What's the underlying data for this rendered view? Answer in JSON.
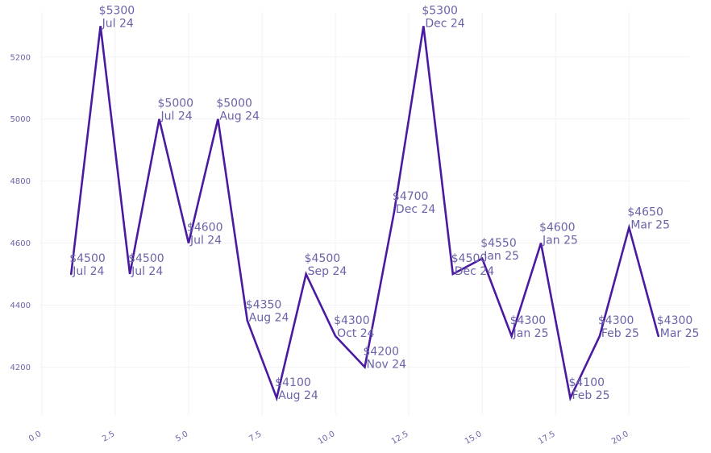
{
  "chart_data": {
    "type": "line",
    "title": "",
    "xlabel": "",
    "ylabel": "",
    "xlim": [
      -0.05,
      22.05
    ],
    "ylim": [
      4045,
      5345
    ],
    "grid": true,
    "x_ticks": [
      0.0,
      2.5,
      5.0,
      7.5,
      10.0,
      12.5,
      15.0,
      17.5,
      20.0
    ],
    "x_tick_labels": [
      "0.0",
      "2.5",
      "5.0",
      "7.5",
      "10.0",
      "12.5",
      "15.0",
      "17.5",
      "20.0"
    ],
    "y_ticks": [
      4200,
      4400,
      4600,
      4800,
      5000,
      5200
    ],
    "y_tick_labels": [
      "4200",
      "4400",
      "4600",
      "4800",
      "5000",
      "5200"
    ],
    "line_color": "#4a1aa0",
    "label_color": "#6b64a8",
    "series": [
      {
        "x": [
          1,
          2,
          3,
          4,
          5,
          6,
          7,
          8,
          9,
          10,
          11,
          12,
          13,
          14,
          15,
          16,
          17,
          18,
          19,
          20,
          21
        ],
        "values": [
          4500,
          5300,
          4500,
          5000,
          4600,
          5000,
          4350,
          4100,
          4500,
          4300,
          4200,
          4700,
          5300,
          4500,
          4550,
          4300,
          4600,
          4100,
          4300,
          4650,
          4300
        ],
        "labels": [
          {
            "price": "$4500",
            "month": "Jul 24"
          },
          {
            "price": "$5300",
            "month": "Jul 24"
          },
          {
            "price": "$4500",
            "month": "Jul 24"
          },
          {
            "price": "$5000",
            "month": "Jul 24"
          },
          {
            "price": "$4600",
            "month": "Jul 24"
          },
          {
            "price": "$5000",
            "month": "Aug 24"
          },
          {
            "price": "$4350",
            "month": "Aug 24"
          },
          {
            "price": "$4100",
            "month": "Aug 24"
          },
          {
            "price": "$4500",
            "month": "Sep 24"
          },
          {
            "price": "$4300",
            "month": "Oct 24"
          },
          {
            "price": "$4200",
            "month": "Nov 24"
          },
          {
            "price": "$4700",
            "month": "Dec 24"
          },
          {
            "price": "$5300",
            "month": "Dec 24"
          },
          {
            "price": "$4500",
            "month": "Dec 24"
          },
          {
            "price": "$4550",
            "month": "Jan 25"
          },
          {
            "price": "$4300",
            "month": "Jan 25"
          },
          {
            "price": "$4600",
            "month": "Jan 25"
          },
          {
            "price": "$4100",
            "month": "Feb 25"
          },
          {
            "price": "$4300",
            "month": "Feb 25"
          },
          {
            "price": "$4650",
            "month": "Mar 25"
          },
          {
            "price": "$4300",
            "month": "Mar 25"
          }
        ]
      }
    ]
  }
}
